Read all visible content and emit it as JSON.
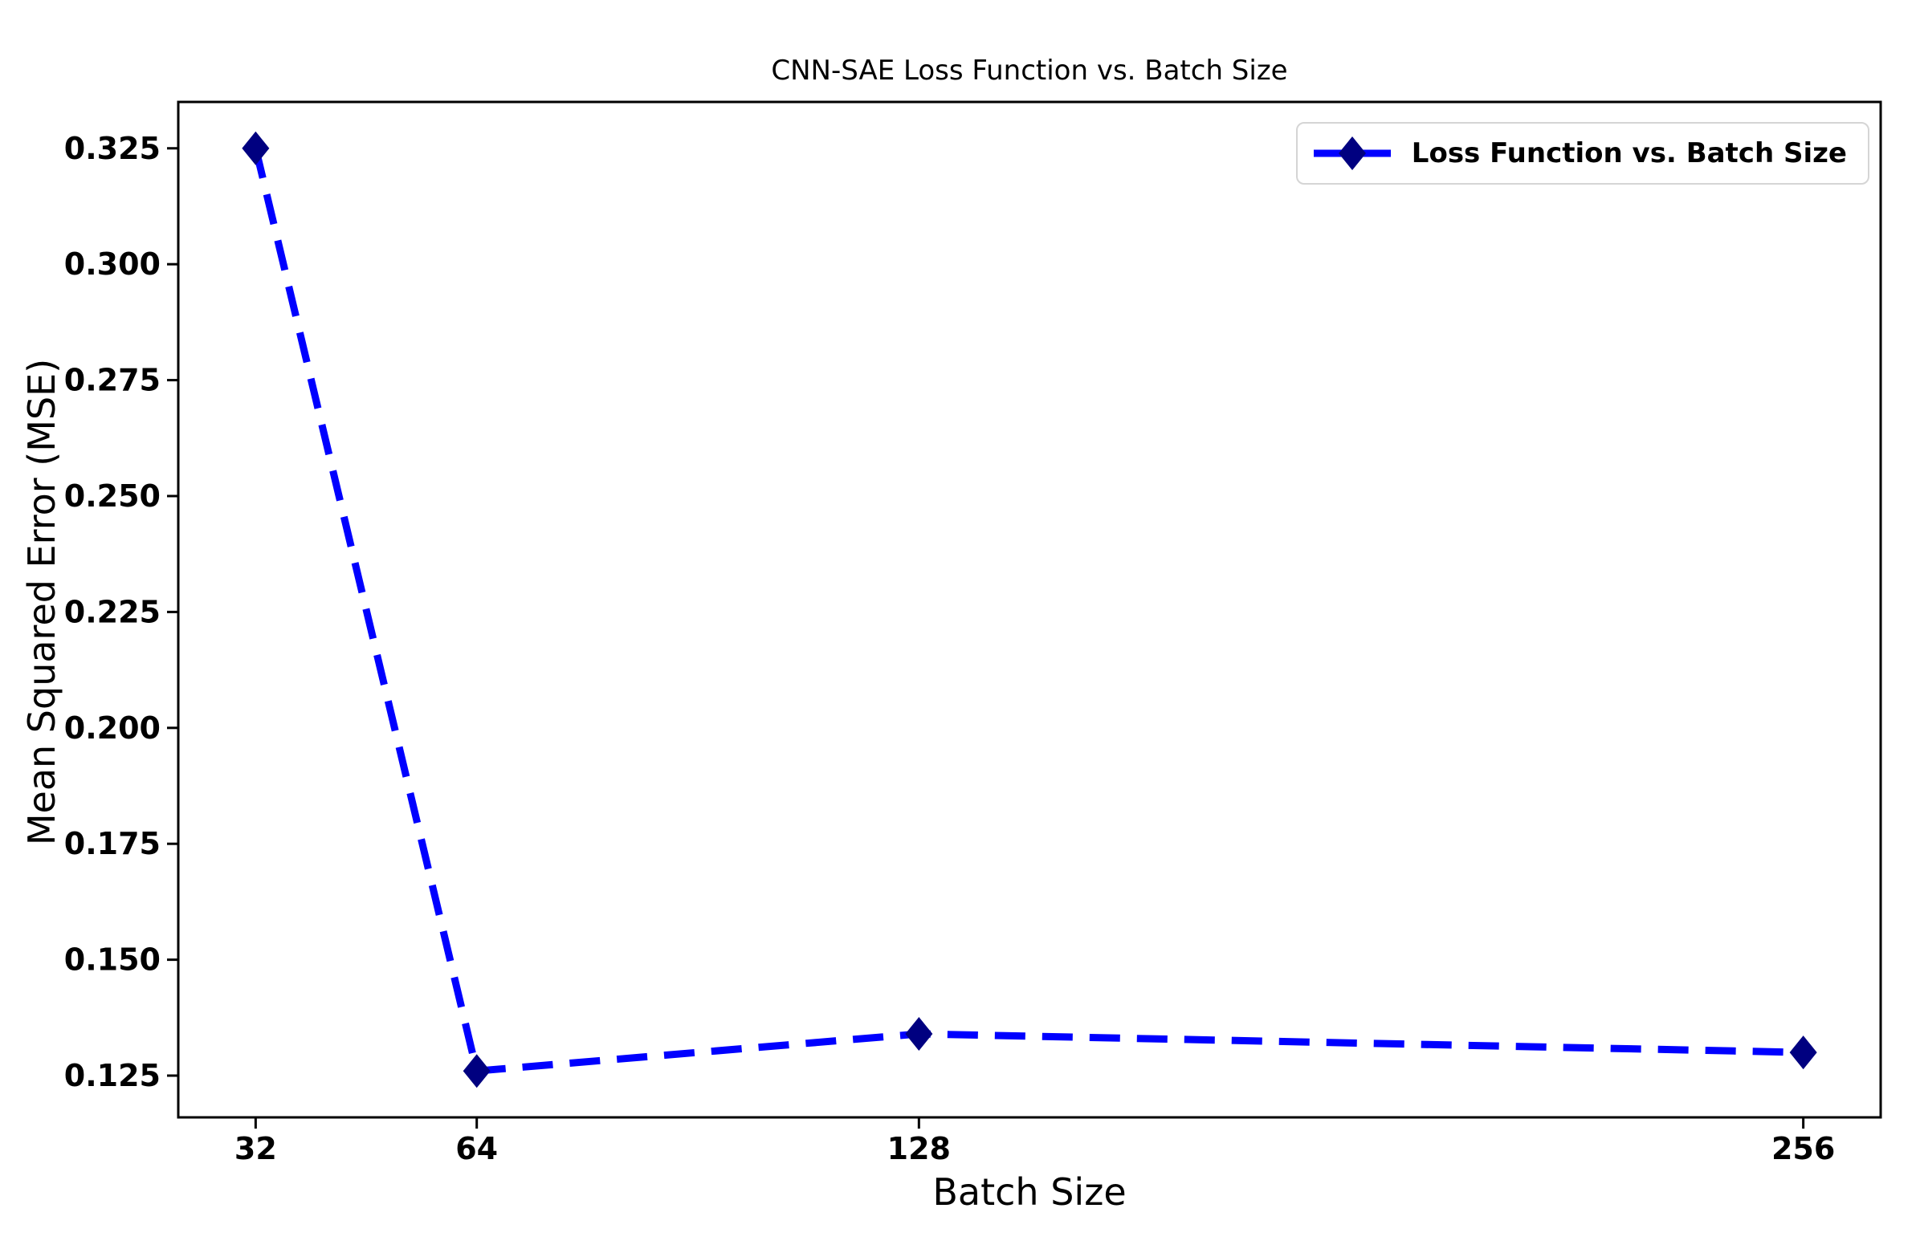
{
  "chart_data": {
    "type": "line",
    "title": "CNN-SAE Loss Function vs. Batch Size",
    "xlabel": "Batch Size",
    "ylabel": "Mean Squared Error (MSE)",
    "series": [
      {
        "name": "Loss Function vs. Batch Size",
        "x": [
          32,
          64,
          128,
          256
        ],
        "y": [
          0.325,
          0.126,
          0.134,
          0.13
        ],
        "line_color": "#0000ff",
        "line_style": "dashed",
        "marker": "diamond",
        "marker_color": "#000080"
      }
    ],
    "x_ticks": [
      32,
      64,
      128,
      256
    ],
    "x_tick_labels": [
      "32",
      "64",
      "128",
      "256"
    ],
    "y_ticks": [
      0.125,
      0.15,
      0.175,
      0.2,
      0.225,
      0.25,
      0.275,
      0.3,
      0.325
    ],
    "y_tick_labels": [
      "0.125",
      "0.150",
      "0.175",
      "0.200",
      "0.225",
      "0.250",
      "0.275",
      "0.300",
      "0.325"
    ],
    "xlim": [
      20.8,
      267.2
    ],
    "ylim": [
      0.116,
      0.335
    ],
    "grid": false,
    "legend": {
      "position": "upper right",
      "label": "Loss Function vs. Batch Size"
    },
    "colors": {
      "line": "#0000ff",
      "marker": "#000080",
      "spine": "#000000",
      "text": "#000000",
      "background": "#ffffff",
      "legend_border": "#d5d5d5"
    }
  }
}
